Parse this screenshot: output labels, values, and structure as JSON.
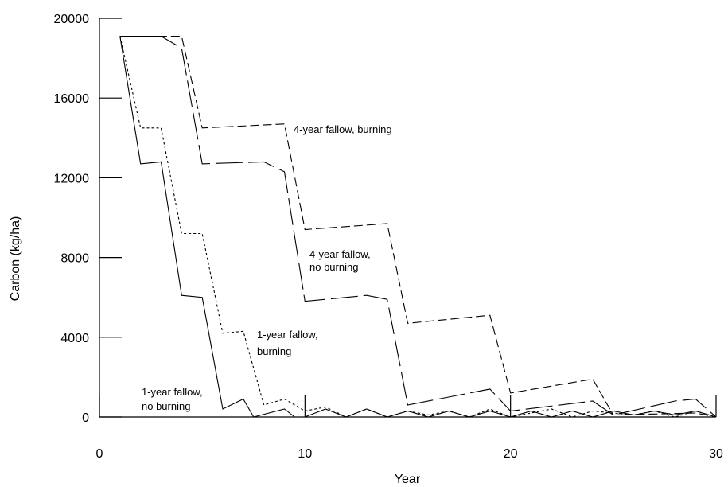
{
  "chart_data": {
    "type": "line",
    "xlabel": "Year",
    "ylabel": "Carbon (kg/ha)",
    "xlim": [
      0,
      30
    ],
    "ylim": [
      0,
      20000
    ],
    "xticks": [
      0,
      10,
      20,
      30
    ],
    "yticks": [
      0,
      4000,
      8000,
      12000,
      16000,
      20000
    ],
    "xtick_labels": [
      "0",
      "10",
      "20",
      "30"
    ],
    "ytick_labels": [
      "0",
      "4000",
      "8000",
      "12000",
      "16000",
      "20000"
    ],
    "grid": false,
    "series": [
      {
        "annotation": [
          "1-year fallow,",
          "no burning"
        ],
        "style": "solid",
        "x": [
          1,
          2,
          3,
          4,
          5,
          6,
          7,
          7.5,
          9,
          9.5,
          10,
          11,
          12,
          13,
          14,
          15,
          16,
          17,
          18,
          19,
          20,
          21,
          22,
          23,
          24,
          25,
          26,
          27,
          28,
          29,
          30
        ],
        "y": [
          19100,
          12700,
          12800,
          6100,
          6000,
          400,
          900,
          0,
          400,
          0,
          0,
          400,
          0,
          400,
          0,
          300,
          0,
          300,
          0,
          300,
          0,
          300,
          0,
          300,
          0,
          300,
          100,
          300,
          100,
          300,
          0
        ]
      },
      {
        "annotation": [
          "1-year fallow,",
          "burning"
        ],
        "style": "short-dash",
        "x": [
          1,
          2,
          3,
          4,
          5,
          6,
          7,
          8,
          9,
          10,
          11,
          12,
          13,
          14,
          15,
          16,
          17,
          18,
          19,
          20,
          21,
          22,
          23,
          24,
          25,
          26,
          27,
          28,
          29,
          30
        ],
        "y": [
          19100,
          14500,
          14500,
          9200,
          9200,
          4200,
          4300,
          600,
          900,
          300,
          500,
          0,
          400,
          0,
          300,
          100,
          300,
          0,
          400,
          0,
          200,
          400,
          0,
          300,
          200,
          100,
          300,
          0,
          300,
          0
        ]
      },
      {
        "annotation": [
          "4-year fallow,",
          "no burning"
        ],
        "style": "long-dash",
        "x": [
          1,
          3,
          4,
          5,
          8,
          9,
          10,
          13,
          14,
          15,
          19,
          20,
          24,
          25,
          28,
          29,
          30
        ],
        "y": [
          19100,
          19100,
          18500,
          12700,
          12800,
          12300,
          5800,
          6100,
          5900,
          600,
          1400,
          300,
          800,
          100,
          800,
          900,
          0
        ]
      },
      {
        "annotation": [
          "4-year fallow, burning"
        ],
        "style": "medium-dash",
        "x": [
          1,
          4,
          5,
          9,
          10,
          14,
          15,
          19,
          20,
          24,
          25,
          29,
          30
        ],
        "y": [
          19100,
          19100,
          14500,
          14700,
          9400,
          9700,
          4700,
          5100,
          1200,
          1900,
          100,
          200,
          0
        ]
      }
    ]
  }
}
